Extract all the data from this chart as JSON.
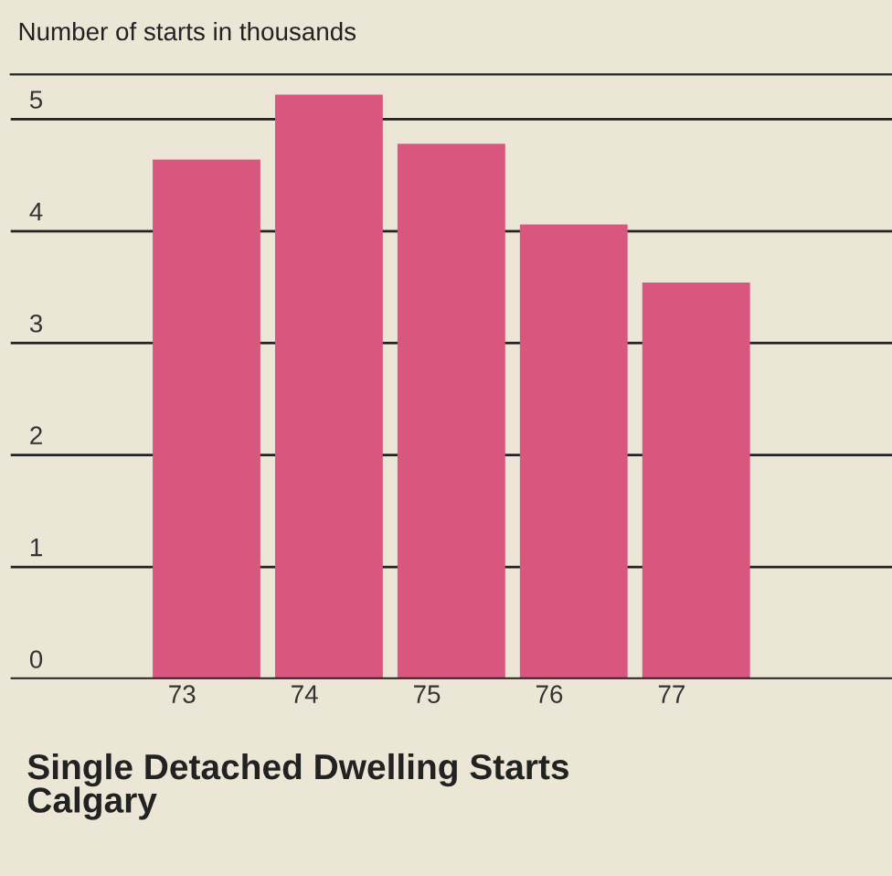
{
  "chart_data": {
    "type": "bar",
    "title": "Single Detached Dwelling Starts\nCalgary",
    "ylabel": "Number of starts in thousands",
    "categories": [
      "73",
      "74",
      "75",
      "76",
      "77"
    ],
    "values": [
      4.64,
      5.22,
      4.78,
      4.06,
      3.54
    ],
    "color": "#d9577f",
    "ylim": [
      0,
      5.4
    ],
    "yticks": [
      0,
      1,
      2,
      3,
      4,
      5
    ],
    "grid": "y"
  }
}
